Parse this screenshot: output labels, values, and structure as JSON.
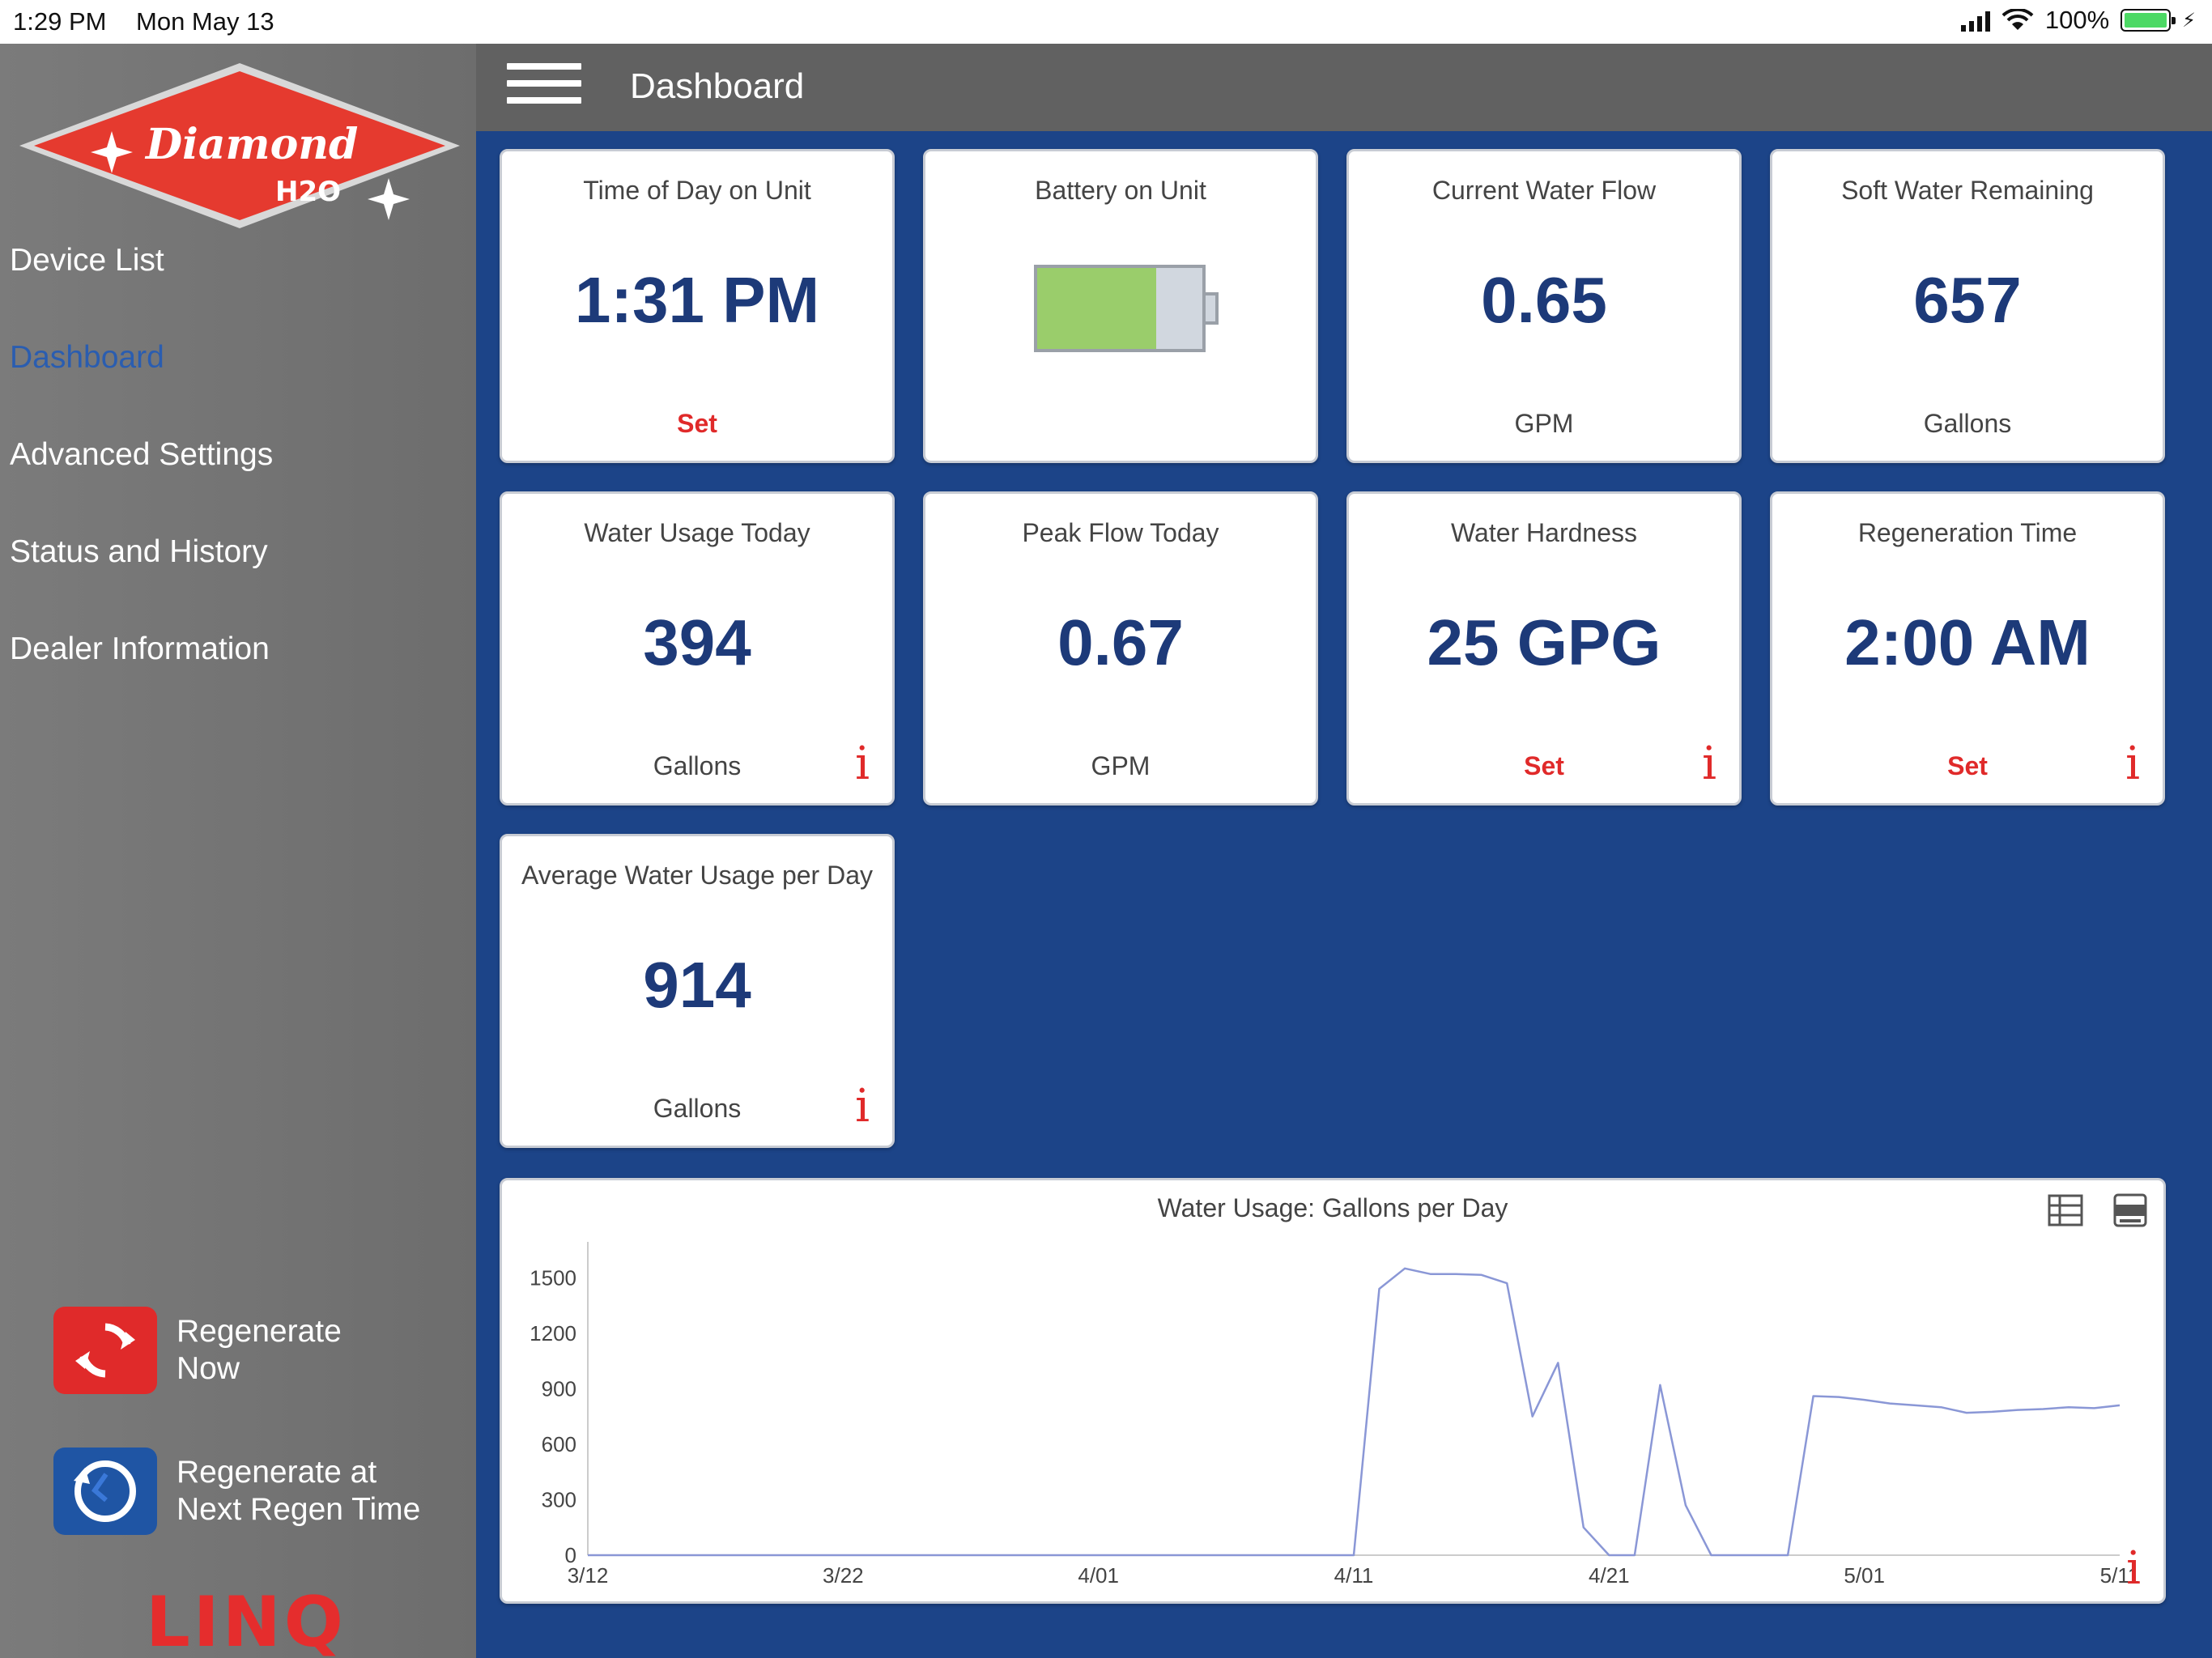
{
  "status_bar": {
    "time": "1:29 PM",
    "date": "Mon May 13",
    "battery": "100%"
  },
  "brand": {
    "logo_name": "Diamond",
    "logo_sub": "H2O",
    "footer": "LINQ"
  },
  "header": {
    "title": "Dashboard"
  },
  "nav": [
    {
      "label": "Device List",
      "active": false
    },
    {
      "label": "Dashboard",
      "active": true
    },
    {
      "label": "Advanced Settings",
      "active": false
    },
    {
      "label": "Status and History",
      "active": false
    },
    {
      "label": "Dealer Information",
      "active": false
    }
  ],
  "actions": {
    "regen_now": {
      "line1": "Regenerate",
      "line2": "Now",
      "icon": "refresh-icon",
      "color": "#e02a2a"
    },
    "regen_next": {
      "line1": "Regenerate at",
      "line2": "Next Regen Time",
      "icon": "clock-icon",
      "color": "#1f55a4"
    }
  },
  "tiles": {
    "time_of_day": {
      "title": "Time of Day on Unit",
      "value": "1:31 PM",
      "action": "Set"
    },
    "battery": {
      "title": "Battery on Unit",
      "level": 0.72
    },
    "current_flow": {
      "title": "Current Water Flow",
      "value": "0.65",
      "unit": "GPM"
    },
    "soft_water": {
      "title": "Soft Water Remaining",
      "value": "657",
      "unit": "Gallons"
    },
    "usage_today": {
      "title": "Water Usage Today",
      "value": "394",
      "unit": "Gallons"
    },
    "peak_flow": {
      "title": "Peak Flow Today",
      "value": "0.67",
      "unit": "GPM"
    },
    "hardness": {
      "title": "Water Hardness",
      "value": "25 GPG",
      "action": "Set"
    },
    "regen_time": {
      "title": "Regeneration Time",
      "value": "2:00 AM",
      "action": "Set"
    },
    "avg_usage": {
      "title": "Average Water Usage per Day",
      "value": "914",
      "unit": "Gallons"
    }
  },
  "info_glyph": "i",
  "colors": {
    "accent_red": "#e02a2a",
    "value_blue": "#1d3a79",
    "background_blue": "#1c4488",
    "line": "#8a97d6"
  },
  "chart_data": {
    "type": "line",
    "title": "Water Usage: Gallons per Day",
    "ylim": [
      0,
      1650
    ],
    "y_ticks": [
      0,
      300,
      600,
      900,
      1200,
      1500
    ],
    "x_ticks": [
      {
        "day": 0,
        "label": "3/12"
      },
      {
        "day": 10,
        "label": "3/22"
      },
      {
        "day": 20,
        "label": "4/01"
      },
      {
        "day": 30,
        "label": "4/11"
      },
      {
        "day": 40,
        "label": "4/21"
      },
      {
        "day": 50,
        "label": "5/01"
      },
      {
        "day": 60,
        "label": "5/11"
      }
    ],
    "series": [
      {
        "points": [
          [
            0,
            0
          ],
          [
            30,
            0
          ],
          [
            31,
            1440
          ],
          [
            32,
            1550
          ],
          [
            33,
            1520
          ],
          [
            34,
            1520
          ],
          [
            35,
            1515
          ],
          [
            36,
            1470
          ],
          [
            37,
            750
          ],
          [
            38,
            1040
          ],
          [
            39,
            150
          ],
          [
            40,
            0
          ],
          [
            41,
            0
          ],
          [
            42,
            920
          ],
          [
            43,
            270
          ],
          [
            44,
            0
          ],
          [
            45,
            0
          ],
          [
            46,
            0
          ],
          [
            47,
            0
          ],
          [
            48,
            860
          ],
          [
            49,
            855
          ],
          [
            50,
            840
          ],
          [
            51,
            820
          ],
          [
            52,
            810
          ],
          [
            53,
            800
          ],
          [
            54,
            770
          ],
          [
            55,
            775
          ],
          [
            56,
            785
          ],
          [
            57,
            790
          ],
          [
            58,
            800
          ],
          [
            59,
            795
          ],
          [
            60,
            810
          ]
        ]
      }
    ]
  }
}
